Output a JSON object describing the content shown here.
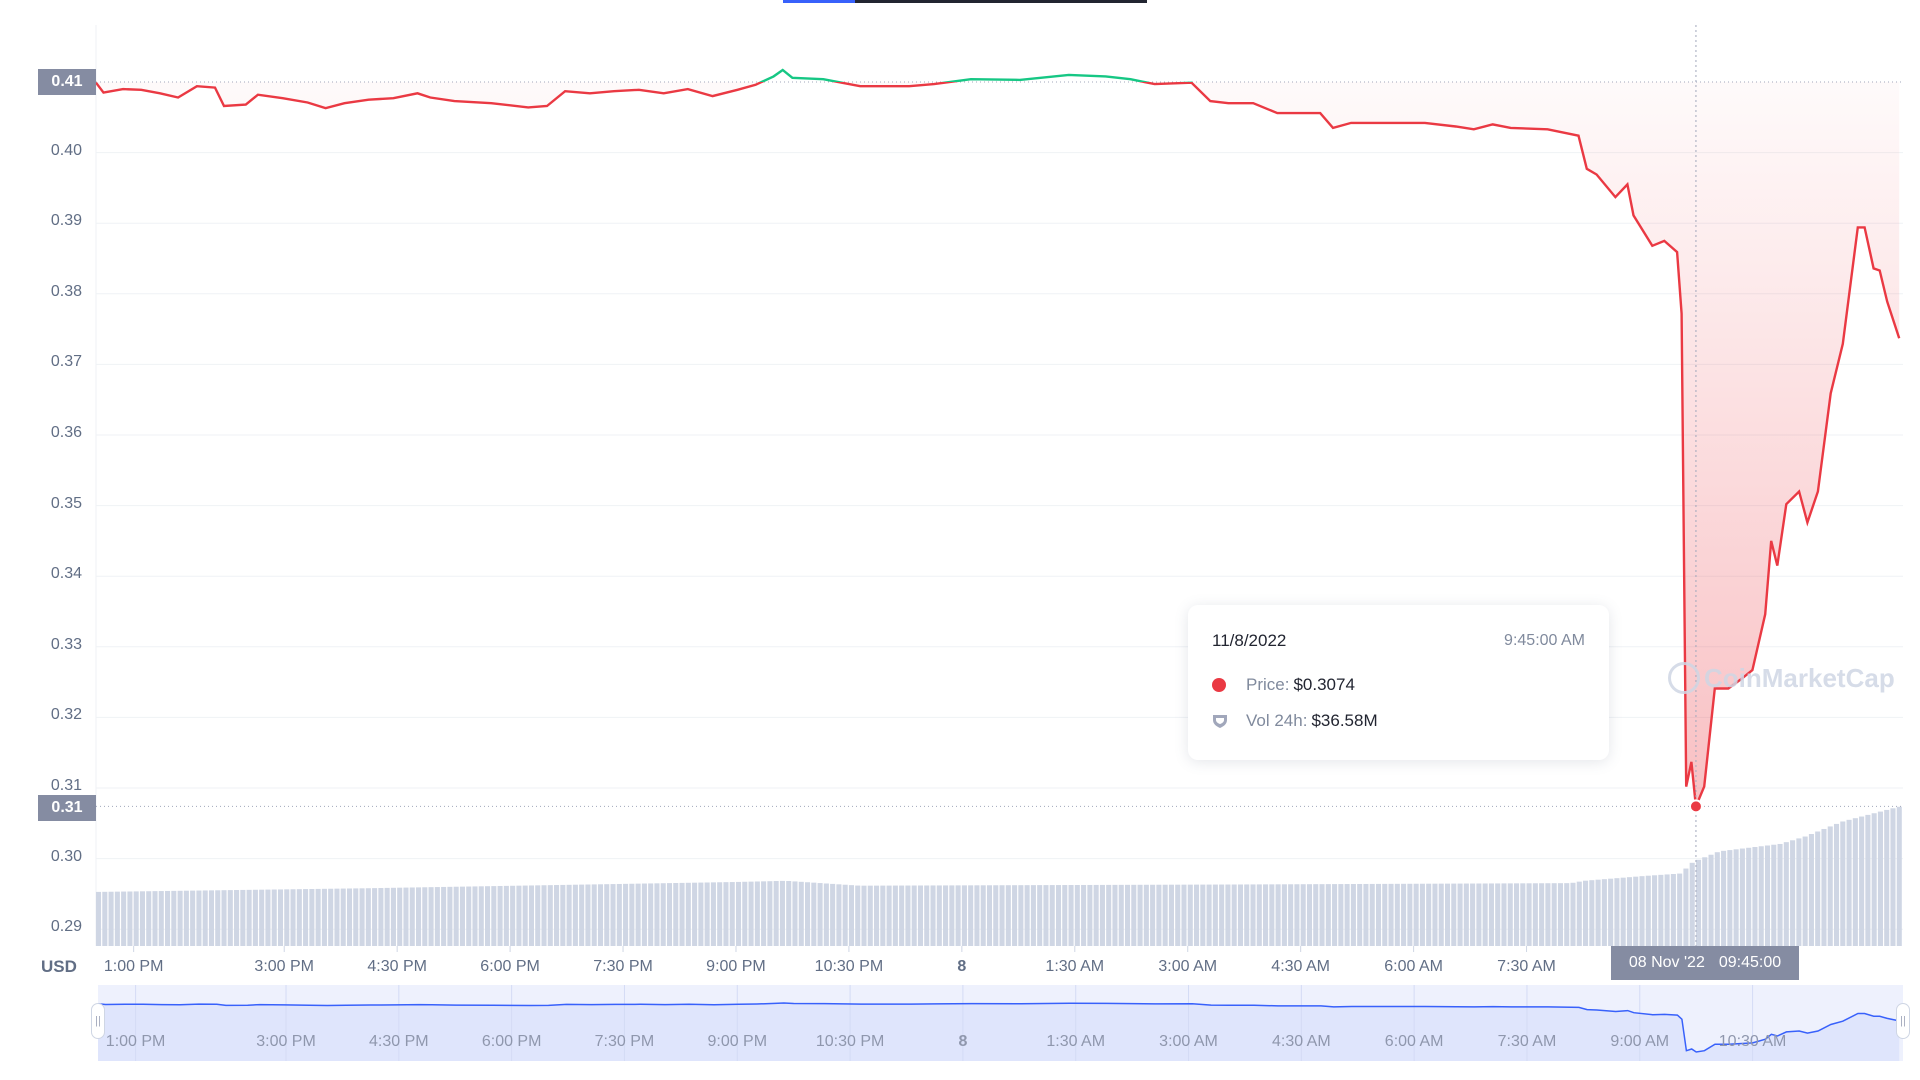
{
  "colors": {
    "down": "#ea3943",
    "up": "#16c784",
    "volume": "#cfd6e4",
    "navigator_line": "#3861fb",
    "navigator_fill": "#dfe5fc",
    "navigator_bg": "#eef1fd",
    "badge": "#858ca2"
  },
  "chart_data": {
    "type": "line",
    "title": "",
    "ylabel": "USD",
    "x_unit": "hours since 12:30 PM, 11/7/2022",
    "xlim": [
      0,
      24
    ],
    "ylim": [
      0.2875,
      0.4215
    ],
    "grid": true,
    "reference_price": 0.41,
    "y_ticks": [
      "0.40",
      "0.39",
      "0.38",
      "0.37",
      "0.36",
      "0.35",
      "0.34",
      "0.33",
      "0.32",
      "0.31",
      "0.30",
      "0.29"
    ],
    "x_ticks": [
      {
        "h": 0.5,
        "label": "1:00 PM"
      },
      {
        "h": 2.5,
        "label": "3:00 PM"
      },
      {
        "h": 4,
        "label": "4:30 PM"
      },
      {
        "h": 5.5,
        "label": "6:00 PM"
      },
      {
        "h": 7,
        "label": "7:30 PM"
      },
      {
        "h": 8.5,
        "label": "9:00 PM"
      },
      {
        "h": 10,
        "label": "10:30 PM"
      },
      {
        "h": 11.5,
        "label": "8",
        "bold": true
      },
      {
        "h": 13,
        "label": "1:30 AM"
      },
      {
        "h": 14.5,
        "label": "3:00 AM"
      },
      {
        "h": 16,
        "label": "4:30 AM"
      },
      {
        "h": 17.5,
        "label": "6:00 AM"
      },
      {
        "h": 19,
        "label": "7:30 AM"
      }
    ],
    "navigator_ticks": [
      {
        "h": 0.5,
        "label": "1:00 PM"
      },
      {
        "h": 2.5,
        "label": "3:00 PM"
      },
      {
        "h": 4,
        "label": "4:30 PM"
      },
      {
        "h": 5.5,
        "label": "6:00 PM"
      },
      {
        "h": 7,
        "label": "7:30 PM"
      },
      {
        "h": 8.5,
        "label": "9:00 PM"
      },
      {
        "h": 10,
        "label": "10:30 PM"
      },
      {
        "h": 11.5,
        "label": "8",
        "bold": true
      },
      {
        "h": 13,
        "label": "1:30 AM"
      },
      {
        "h": 14.5,
        "label": "3:00 AM"
      },
      {
        "h": 16,
        "label": "4:30 AM"
      },
      {
        "h": 17.5,
        "label": "6:00 AM"
      },
      {
        "h": 19,
        "label": "7:30 AM"
      },
      {
        "h": 20.5,
        "label": "9:00 AM"
      },
      {
        "h": 22,
        "label": "10:30 AM"
      }
    ],
    "price_series": {
      "name": "Price",
      "points": [
        [
          0,
          0.4099
        ],
        [
          0.1,
          0.4085
        ],
        [
          0.36,
          0.409
        ],
        [
          0.6,
          0.4089
        ],
        [
          0.85,
          0.4084
        ],
        [
          1.09,
          0.4078
        ],
        [
          1.34,
          0.4094
        ],
        [
          1.58,
          0.4092
        ],
        [
          1.7,
          0.4066
        ],
        [
          1.99,
          0.4068
        ],
        [
          2.15,
          0.4082
        ],
        [
          2.48,
          0.4077
        ],
        [
          2.81,
          0.4071
        ],
        [
          3.05,
          0.4063
        ],
        [
          3.3,
          0.407
        ],
        [
          3.62,
          0.4075
        ],
        [
          3.95,
          0.4077
        ],
        [
          4.27,
          0.4084
        ],
        [
          4.44,
          0.4078
        ],
        [
          4.76,
          0.4073
        ],
        [
          5.25,
          0.407
        ],
        [
          5.74,
          0.4064
        ],
        [
          5.99,
          0.4066
        ],
        [
          6.23,
          0.4087
        ],
        [
          6.56,
          0.4084
        ],
        [
          6.88,
          0.4087
        ],
        [
          7.21,
          0.4089
        ],
        [
          7.54,
          0.4084
        ],
        [
          7.86,
          0.409
        ],
        [
          8.19,
          0.408
        ],
        [
          8.52,
          0.4089
        ],
        [
          8.76,
          0.4096
        ],
        [
          9.0,
          0.4108
        ],
        [
          9.12,
          0.4117
        ],
        [
          9.25,
          0.4106
        ],
        [
          9.66,
          0.4104
        ],
        [
          10.15,
          0.4094
        ],
        [
          10.8,
          0.4094
        ],
        [
          11.13,
          0.4097
        ],
        [
          11.62,
          0.4104
        ],
        [
          12.27,
          0.4103
        ],
        [
          12.92,
          0.411
        ],
        [
          13.41,
          0.4108
        ],
        [
          13.74,
          0.4104
        ],
        [
          14.06,
          0.4097
        ],
        [
          14.55,
          0.4099
        ],
        [
          14.8,
          0.4073
        ],
        [
          15.04,
          0.407
        ],
        [
          15.37,
          0.407
        ],
        [
          15.69,
          0.4056
        ],
        [
          16.02,
          0.4056
        ],
        [
          16.26,
          0.4056
        ],
        [
          16.43,
          0.4035
        ],
        [
          16.67,
          0.4042
        ],
        [
          17.16,
          0.4042
        ],
        [
          17.65,
          0.4042
        ],
        [
          18.06,
          0.4037
        ],
        [
          18.3,
          0.4033
        ],
        [
          18.55,
          0.404
        ],
        [
          18.79,
          0.4035
        ],
        [
          19.28,
          0.4033
        ],
        [
          19.69,
          0.4024
        ],
        [
          19.8,
          0.3977
        ],
        [
          19.93,
          0.3969
        ],
        [
          20.18,
          0.3937
        ],
        [
          20.34,
          0.3955
        ],
        [
          20.42,
          0.3911
        ],
        [
          20.67,
          0.3868
        ],
        [
          20.83,
          0.3875
        ],
        [
          21.0,
          0.3859
        ],
        [
          21.06,
          0.3772
        ],
        [
          21.12,
          0.3102
        ],
        [
          21.19,
          0.3137
        ],
        [
          21.25,
          0.3074
        ],
        [
          21.36,
          0.3102
        ],
        [
          21.5,
          0.3241
        ],
        [
          21.68,
          0.3241
        ],
        [
          21.86,
          0.3255
        ],
        [
          22.0,
          0.3267
        ],
        [
          22.17,
          0.3346
        ],
        [
          22.25,
          0.345
        ],
        [
          22.33,
          0.3415
        ],
        [
          22.45,
          0.3502
        ],
        [
          22.62,
          0.352
        ],
        [
          22.73,
          0.3476
        ],
        [
          22.87,
          0.352
        ],
        [
          23.04,
          0.3659
        ],
        [
          23.2,
          0.3729
        ],
        [
          23.4,
          0.3894
        ],
        [
          23.49,
          0.3894
        ],
        [
          23.61,
          0.3836
        ],
        [
          23.69,
          0.3833
        ],
        [
          23.79,
          0.3789
        ],
        [
          23.95,
          0.3737
        ]
      ]
    },
    "volume_series": {
      "name": "Vol 24h ($M)",
      "bars": 288,
      "points": [
        [
          0,
          23.3
        ],
        [
          3.62,
          24.9
        ],
        [
          8.52,
          27.6
        ],
        [
          9.17,
          28.1
        ],
        [
          10.15,
          26.0
        ],
        [
          15.04,
          26.5
        ],
        [
          19.6,
          27.1
        ],
        [
          19.77,
          28.1
        ],
        [
          20.58,
          30.2
        ],
        [
          21.08,
          31.3
        ],
        [
          21.16,
          35.0
        ],
        [
          21.25,
          36.6
        ],
        [
          21.57,
          40.8
        ],
        [
          22.38,
          44.0
        ],
        [
          22.71,
          47.2
        ],
        [
          23.2,
          53.6
        ],
        [
          23.95,
          60.0
        ]
      ]
    },
    "crosshair": {
      "h": 21.25,
      "price": 0.3074
    }
  },
  "axis": {
    "unit_label": "USD",
    "ref_badge": "0.41",
    "cursor_badge": "0.31"
  },
  "cursor_date_badge": {
    "date": "08 Nov '22",
    "time": "09:45:00"
  },
  "tooltip": {
    "date": "11/8/2022",
    "time": "9:45:00 AM",
    "price_label": "Price:",
    "price_value": "$0.3074",
    "vol_label": "Vol 24h:",
    "vol_value": "$36.58M"
  },
  "watermark": "CoinMarketCap"
}
